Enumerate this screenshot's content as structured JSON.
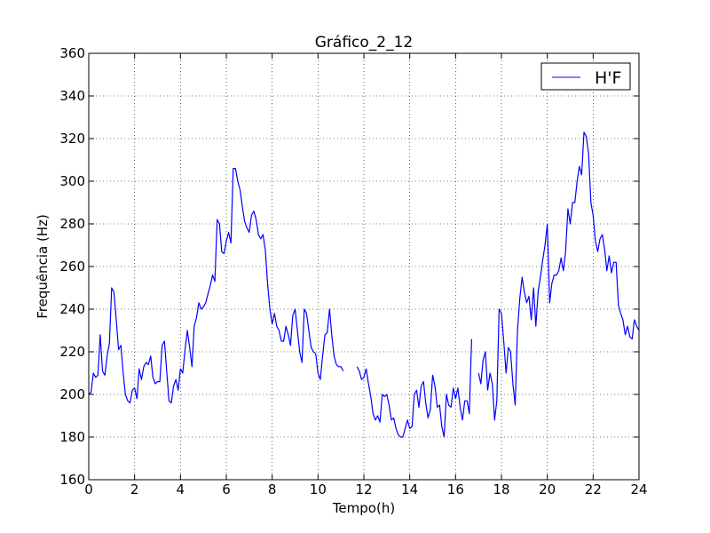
{
  "chart_data": {
    "type": "line",
    "title": "Gráfico_2_12",
    "xlabel": "Tempo(h)",
    "ylabel": "Frequência (Hz)",
    "xlim": [
      0,
      24
    ],
    "ylim": [
      160,
      360
    ],
    "xticks": [
      0,
      2,
      4,
      6,
      8,
      10,
      12,
      14,
      16,
      18,
      20,
      22,
      24
    ],
    "yticks": [
      160,
      180,
      200,
      220,
      240,
      260,
      280,
      300,
      320,
      340,
      360
    ],
    "grid": true,
    "legend_position": "top-right",
    "series": [
      {
        "name": "H'F",
        "color": "#0000ff",
        "segments": [
          {
            "x": [
              0.0,
              0.1,
              0.2,
              0.3,
              0.4,
              0.5,
              0.6,
              0.7,
              0.8,
              0.9,
              1.0,
              1.1,
              1.2,
              1.3,
              1.4,
              1.5,
              1.6,
              1.7,
              1.8,
              1.9,
              2.0,
              2.1,
              2.2,
              2.3,
              2.4,
              2.5,
              2.6,
              2.7,
              2.8,
              2.9,
              3.0,
              3.1,
              3.2,
              3.3,
              3.4,
              3.5,
              3.6,
              3.7,
              3.8,
              3.9,
              4.0,
              4.1,
              4.2,
              4.3,
              4.4,
              4.5,
              4.6,
              4.7,
              4.8,
              4.9,
              5.0,
              5.1,
              5.2,
              5.3,
              5.4,
              5.5,
              5.6,
              5.7,
              5.8,
              5.9,
              6.0,
              6.1,
              6.2,
              6.3,
              6.4,
              6.5,
              6.6,
              6.7,
              6.8,
              6.9,
              7.0,
              7.1,
              7.2,
              7.3,
              7.4,
              7.5,
              7.6,
              7.7,
              7.8,
              7.9,
              8.0,
              8.1,
              8.2,
              8.3,
              8.4,
              8.5,
              8.6,
              8.7,
              8.8,
              8.9,
              9.0,
              9.1,
              9.2,
              9.3,
              9.4,
              9.5,
              9.6,
              9.7,
              9.8,
              9.9,
              10.0,
              10.1,
              10.2,
              10.3,
              10.4,
              10.5,
              10.6,
              10.7,
              10.8,
              10.9,
              11.0,
              11.1
            ],
            "y": [
              200,
              201,
              210,
              208,
              209,
              228,
              211,
              209,
              218,
              224,
              250,
              248,
              235,
              221,
              223,
              210,
              200,
              197,
              196,
              202,
              203,
              198,
              212,
              207,
              213,
              215,
              214,
              218,
              208,
              205,
              206,
              206,
              223,
              225,
              211,
              197,
              196,
              204,
              207,
              202,
              212,
              210,
              221,
              230,
              222,
              213,
              232,
              236,
              243,
              240,
              241,
              243,
              247,
              251,
              256,
              253,
              282,
              280,
              267,
              266,
              272,
              276,
              271,
              306,
              306,
              300,
              296,
              288,
              281,
              278,
              276,
              284,
              286,
              282,
              275,
              273,
              275,
              268,
              252,
              240,
              233,
              238,
              232,
              230,
              225,
              225,
              232,
              228,
              223,
              237,
              240,
              230,
              220,
              215,
              240,
              238,
              230,
              222,
              220,
              219,
              210,
              207,
              218,
              228,
              229,
              240,
              228,
              218,
              214,
              213,
              213,
              211
            ]
          },
          {
            "x": [
              11.7,
              11.8,
              11.9,
              12.0,
              12.1,
              12.2,
              12.3,
              12.4,
              12.5,
              12.6,
              12.7,
              12.8,
              12.9,
              13.0,
              13.1,
              13.2,
              13.3,
              13.4,
              13.5,
              13.6,
              13.7,
              13.8,
              13.9,
              14.0,
              14.1,
              14.2,
              14.3,
              14.4,
              14.5,
              14.6,
              14.7,
              14.8,
              14.9,
              15.0,
              15.1,
              15.2,
              15.3,
              15.4,
              15.5,
              15.6,
              15.7,
              15.8,
              15.9,
              16.0,
              16.1,
              16.2,
              16.3,
              16.4,
              16.5,
              16.6,
              16.7
            ],
            "y": [
              213,
              211,
              207,
              208,
              212,
              205,
              199,
              191,
              188,
              190,
              187,
              200,
              199,
              200,
              195,
              188,
              189,
              184,
              181,
              180,
              180,
              184,
              188,
              184,
              185,
              200,
              202,
              194,
              204,
              206,
              196,
              189,
              193,
              209,
              204,
              194,
              195,
              185,
              180,
              200,
              195,
              194,
              203,
              198,
              203,
              194,
              188,
              197,
              197,
              191,
              226
            ]
          },
          {
            "x": [
              17.0,
              17.1,
              17.2,
              17.3,
              17.4,
              17.5,
              17.6,
              17.7,
              17.8,
              17.9,
              18.0,
              18.1,
              18.2,
              18.3,
              18.4,
              18.5,
              18.6,
              18.7,
              18.8,
              18.9,
              19.0,
              19.1,
              19.2,
              19.3,
              19.4,
              19.5,
              19.6,
              19.7,
              19.8,
              19.9,
              20.0,
              20.1,
              20.2,
              20.3,
              20.4,
              20.5,
              20.6,
              20.7,
              20.8,
              20.9,
              21.0,
              21.1,
              21.2,
              21.3,
              21.4,
              21.5,
              21.6,
              21.7,
              21.8,
              21.9,
              22.0,
              22.1,
              22.2,
              22.3,
              22.4,
              22.5,
              22.6,
              22.7,
              22.8,
              22.9,
              23.0,
              23.1,
              23.2,
              23.3,
              23.4,
              23.5,
              23.6,
              23.7,
              23.8,
              23.9,
              24.0
            ],
            "y": [
              210,
              205,
              216,
              220,
              202,
              210,
              205,
              188,
              197,
              240,
              238,
              225,
              210,
              222,
              220,
              205,
              195,
              230,
              245,
              255,
              248,
              243,
              246,
              235,
              250,
              232,
              248,
              255,
              263,
              270,
              280,
              243,
              252,
              256,
              256,
              258,
              264,
              258,
              267,
              287,
              280,
              290,
              290,
              300,
              307,
              303,
              323,
              321,
              313,
              290,
              284,
              272,
              267,
              273,
              275,
              268,
              258,
              265,
              257,
              262,
              262,
              242,
              238,
              235,
              228,
              232,
              227,
              226,
              235,
              232,
              230
            ]
          }
        ]
      }
    ]
  }
}
